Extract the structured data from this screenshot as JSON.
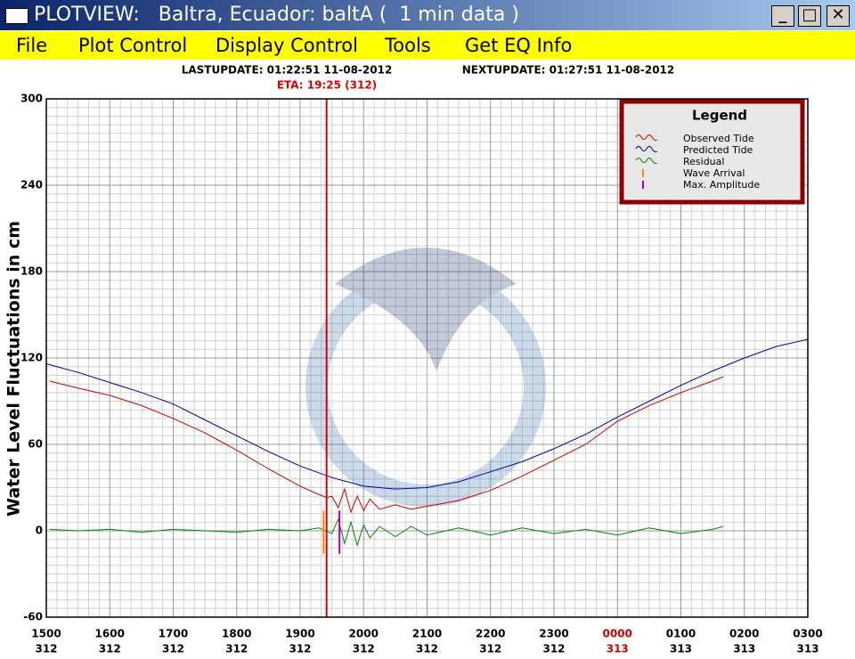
{
  "window": {
    "title": "PLOTVIEW:   Baltra, Ecuador: baltA (  1 min data )"
  },
  "menu": [
    "File",
    "Plot Control",
    "Display Control",
    "Tools",
    "Get EQ Info"
  ],
  "header": {
    "last_update": "LASTUPDATE: 01:22:51 11-08-2012",
    "next_update": "NEXTUPDATE: 01:27:51 11-08-2012",
    "eta": "ETA: 19:25 (312)"
  },
  "chart_data": {
    "type": "line",
    "ylabel": "Water Level Fluctuations in cm",
    "xlim": [
      15,
      27
    ],
    "ylim": [
      -60,
      300
    ],
    "xticks": [
      {
        "value": 15,
        "label": "1500"
      },
      {
        "value": 16,
        "label": "1600"
      },
      {
        "value": 17,
        "label": "1700"
      },
      {
        "value": 18,
        "label": "1800"
      },
      {
        "value": 19,
        "label": "1900"
      },
      {
        "value": 20,
        "label": "2000"
      },
      {
        "value": 21,
        "label": "2100"
      },
      {
        "value": 22,
        "label": "2200"
      },
      {
        "value": 23,
        "label": "2300"
      },
      {
        "value": 24,
        "label": "0000"
      },
      {
        "value": 25,
        "label": "0100"
      },
      {
        "value": 26,
        "label": "0200"
      },
      {
        "value": 27,
        "label": "0300"
      }
    ],
    "xtick_days": [
      "312",
      "312",
      "312",
      "312",
      "312",
      "312",
      "312",
      "312",
      "312",
      "313",
      "313",
      "313",
      "313"
    ],
    "day_change_color": "#cc0000",
    "yticks": [
      -60,
      0,
      60,
      120,
      180,
      240,
      300
    ],
    "grid": true,
    "minor_x_per_major": 6,
    "minor_y_per_major": 10,
    "eta_x": 19.4167,
    "eta_color": "#dd0000",
    "legend": {
      "title": "Legend",
      "position": "upper right"
    },
    "series": [
      {
        "name": "Observed Tide",
        "color": "#cc0000",
        "x": [
          15.05,
          15.5,
          16,
          16.5,
          17,
          17.5,
          18,
          18.5,
          19,
          19.25,
          19.42,
          19.5,
          19.6,
          19.7,
          19.8,
          19.9,
          20,
          20.1,
          20.25,
          20.5,
          20.75,
          21,
          21.5,
          22,
          22.5,
          23,
          23.5,
          24,
          24.5,
          25,
          25.5,
          25.67
        ],
        "values": [
          104,
          99,
          94,
          87,
          78,
          68,
          56,
          43,
          31,
          26,
          23,
          24,
          16,
          29,
          13,
          24,
          14,
          22,
          15,
          18,
          15,
          17,
          21,
          28,
          38,
          49,
          60,
          76,
          87,
          96,
          104,
          107
        ]
      },
      {
        "name": "Predicted Tide",
        "color": "#0000aa",
        "x": [
          15,
          15.5,
          16,
          16.5,
          17,
          17.5,
          18,
          18.5,
          19,
          19.5,
          20,
          20.5,
          21,
          21.5,
          22,
          22.5,
          23,
          23.5,
          24,
          24.5,
          25,
          25.5,
          26,
          26.5,
          27
        ],
        "values": [
          116,
          110,
          103,
          96,
          88,
          77,
          66,
          55,
          45,
          37,
          31,
          29,
          30,
          34,
          41,
          48,
          57,
          67,
          79,
          90,
          101,
          111,
          120,
          128,
          133
        ]
      },
      {
        "name": "Residual",
        "color": "#008800",
        "x": [
          15.05,
          15.5,
          16,
          16.5,
          17,
          17.5,
          18,
          18.5,
          19,
          19.3,
          19.5,
          19.6,
          19.7,
          19.8,
          19.9,
          20,
          20.1,
          20.25,
          20.5,
          20.75,
          21,
          21.5,
          22,
          22.5,
          23,
          23.5,
          24,
          24.5,
          25,
          25.5,
          25.67
        ],
        "values": [
          1,
          0,
          1,
          -1,
          1,
          0,
          -1,
          1,
          0,
          2,
          -2,
          8,
          -9,
          6,
          -10,
          4,
          -5,
          3,
          -4,
          3,
          -3,
          2,
          -3,
          2,
          -2,
          1,
          -3,
          2,
          -2,
          1,
          3
        ]
      }
    ],
    "markers": [
      {
        "name": "Wave Arrival",
        "color": "#ff8800",
        "x": 19.37,
        "ymin": -16,
        "ymax": 14
      },
      {
        "name": "Max. Amplitude",
        "color": "#aa00aa",
        "x": 19.62,
        "ymin": -16,
        "ymax": 14
      }
    ]
  }
}
